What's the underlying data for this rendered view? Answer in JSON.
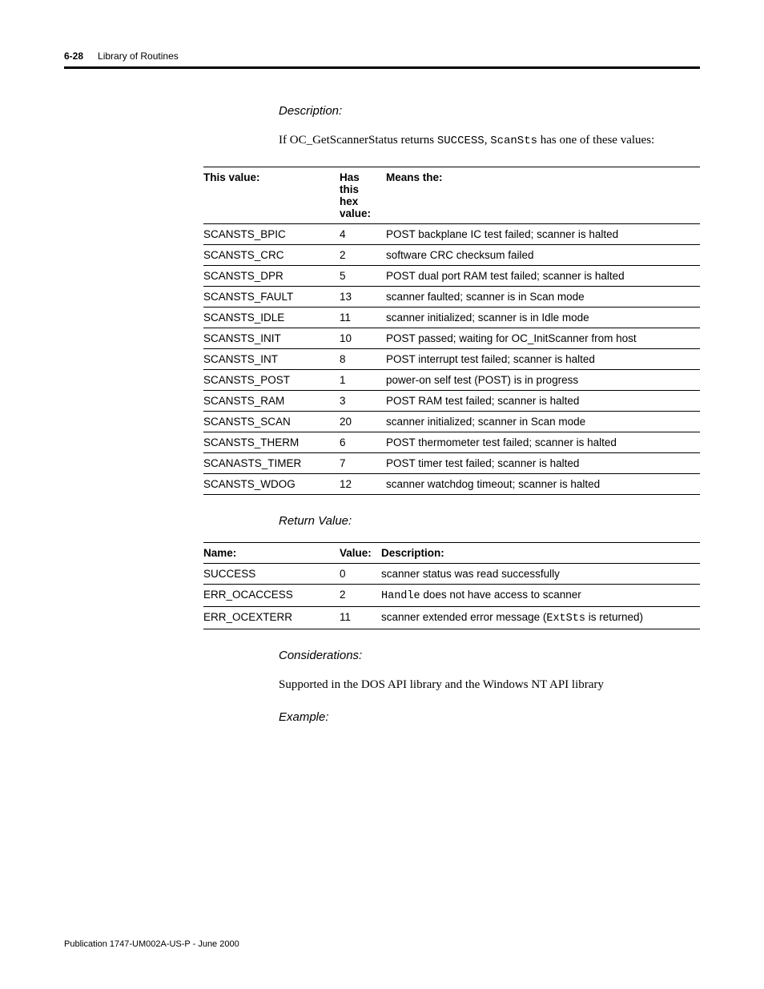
{
  "header": {
    "page_number": "6-28",
    "title": "Library of Routines"
  },
  "sections": {
    "description": {
      "heading": "Description:",
      "para_before": "If OC_GetScannerStatus returns ",
      "code1": "SUCCESS",
      "para_mid": ", ",
      "code2": "ScanSts",
      "para_after": " has one of these values:"
    },
    "table1": {
      "headers": {
        "value": "This value:",
        "hex": "Has this hex value:",
        "means": "Means the:"
      },
      "rows": [
        {
          "value": "SCANSTS_BPIC",
          "hex": "4",
          "means": "POST backplane IC test failed; scanner is halted"
        },
        {
          "value": "SCANSTS_CRC",
          "hex": "2",
          "means": "software CRC checksum failed"
        },
        {
          "value": "SCANSTS_DPR",
          "hex": "5",
          "means": "POST dual port RAM test failed; scanner is halted"
        },
        {
          "value": "SCANSTS_FAULT",
          "hex": "13",
          "means": "scanner faulted; scanner is in Scan mode"
        },
        {
          "value": "SCANSTS_IDLE",
          "hex": "11",
          "means": "scanner initialized; scanner is in Idle mode"
        },
        {
          "value": "SCANSTS_INIT",
          "hex": "10",
          "means": "POST passed; waiting for OC_InitScanner from host"
        },
        {
          "value": "SCANSTS_INT",
          "hex": "8",
          "means": "POST interrupt test failed; scanner is halted"
        },
        {
          "value": "SCANSTS_POST",
          "hex": "1",
          "means": "power-on self test (POST) is in progress"
        },
        {
          "value": "SCANSTS_RAM",
          "hex": "3",
          "means": "POST RAM test failed; scanner is halted"
        },
        {
          "value": "SCANSTS_SCAN",
          "hex": "20",
          "means": "scanner initialized; scanner in Scan mode"
        },
        {
          "value": "SCANSTS_THERM",
          "hex": "6",
          "means": "POST thermometer test failed; scanner is halted"
        },
        {
          "value": "SCANASTS_TIMER",
          "hex": "7",
          "means": "POST timer test failed; scanner is halted"
        },
        {
          "value": "SCANSTS_WDOG",
          "hex": "12",
          "means": "scanner watchdog timeout; scanner is halted"
        }
      ]
    },
    "return_value": {
      "heading": "Return Value:"
    },
    "table2": {
      "headers": {
        "name": "Name:",
        "value": "Value:",
        "desc": "Description:"
      },
      "rows": [
        {
          "name": "SUCCESS",
          "value": "0",
          "desc": "scanner status was read successfully"
        },
        {
          "name": "ERR_OCACCESS",
          "value": "2",
          "desc_pre": "Handle",
          "desc": " does not have access to scanner"
        },
        {
          "name": "ERR_OCEXTERR",
          "value": "11",
          "desc": "scanner extended error message (",
          "desc_code": "ExtSts",
          "desc_after": " is returned)"
        }
      ]
    },
    "considerations": {
      "heading": "Considerations:",
      "body": "Supported in the DOS API library and the Windows NT API library"
    },
    "example": {
      "heading": "Example:"
    }
  },
  "footer": {
    "text": "Publication 1747-UM002A-US-P - June 2000"
  }
}
